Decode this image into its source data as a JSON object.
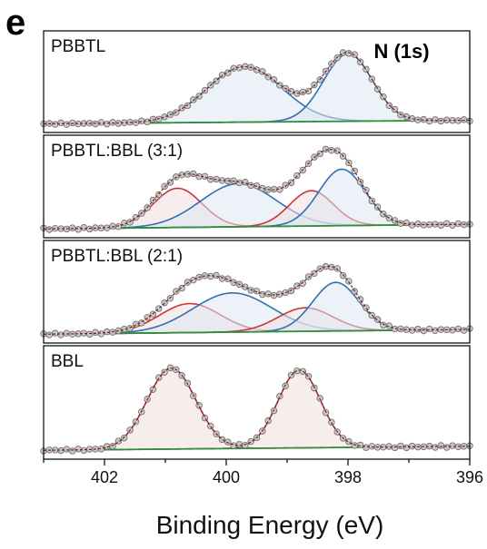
{
  "panel_letter": "e",
  "colors": {
    "red": "#c9353a",
    "blue": "#2f6fb5",
    "background": "#2f8f3a",
    "envelope": "#7a1f1f",
    "red_fill": "#f3dede",
    "blue_fill": "#dde7f3",
    "point_fill": "#c8c8c8",
    "point_stroke": "#6a6a6a"
  },
  "chart_data": {
    "type": "line",
    "region": "N (1s)",
    "xlabel": "Binding Energy (eV)",
    "xlim": [
      403,
      396
    ],
    "x_reversed": true,
    "xticks": [
      402,
      400,
      398,
      396
    ],
    "stacked_panels": true,
    "panels": [
      {
        "name": "PBBTL",
        "ymax": 1.2,
        "background": [
          [
            403,
            0.02
          ],
          [
            396,
            0.07
          ]
        ],
        "components": [
          {
            "type": "blue",
            "center": 399.7,
            "sigma": 0.62,
            "amplitude": 0.78
          },
          {
            "type": "blue",
            "center": 398.0,
            "sigma": 0.4,
            "amplitude": 0.95
          }
        ]
      },
      {
        "name": "PBBTL:BBL (3:1)",
        "ymax": 1.1,
        "background": [
          [
            403,
            0.02
          ],
          [
            396,
            0.08
          ]
        ],
        "components": [
          {
            "type": "red",
            "center": 400.8,
            "sigma": 0.4,
            "amplitude": 0.5
          },
          {
            "type": "blue",
            "center": 399.8,
            "sigma": 0.62,
            "amplitude": 0.55
          },
          {
            "type": "red",
            "center": 398.6,
            "sigma": 0.36,
            "amplitude": 0.45
          },
          {
            "type": "blue",
            "center": 398.1,
            "sigma": 0.38,
            "amplitude": 0.72
          }
        ]
      },
      {
        "name": "PBBTL:BBL (2:1)",
        "ymax": 1.1,
        "background": [
          [
            403,
            0.02
          ],
          [
            396,
            0.08
          ]
        ],
        "components": [
          {
            "type": "red",
            "center": 400.6,
            "sigma": 0.5,
            "amplitude": 0.37
          },
          {
            "type": "blue",
            "center": 399.9,
            "sigma": 0.65,
            "amplitude": 0.5
          },
          {
            "type": "red",
            "center": 398.7,
            "sigma": 0.45,
            "amplitude": 0.3
          },
          {
            "type": "blue",
            "center": 398.2,
            "sigma": 0.38,
            "amplitude": 0.62
          }
        ]
      },
      {
        "name": "BBL",
        "ymax": 1.2,
        "background": [
          [
            403,
            0.02
          ],
          [
            396,
            0.07
          ]
        ],
        "components": [
          {
            "type": "red",
            "center": 400.9,
            "sigma": 0.4,
            "amplitude": 1.0
          },
          {
            "type": "red",
            "center": 398.8,
            "sigma": 0.35,
            "amplitude": 0.96
          }
        ]
      }
    ]
  }
}
